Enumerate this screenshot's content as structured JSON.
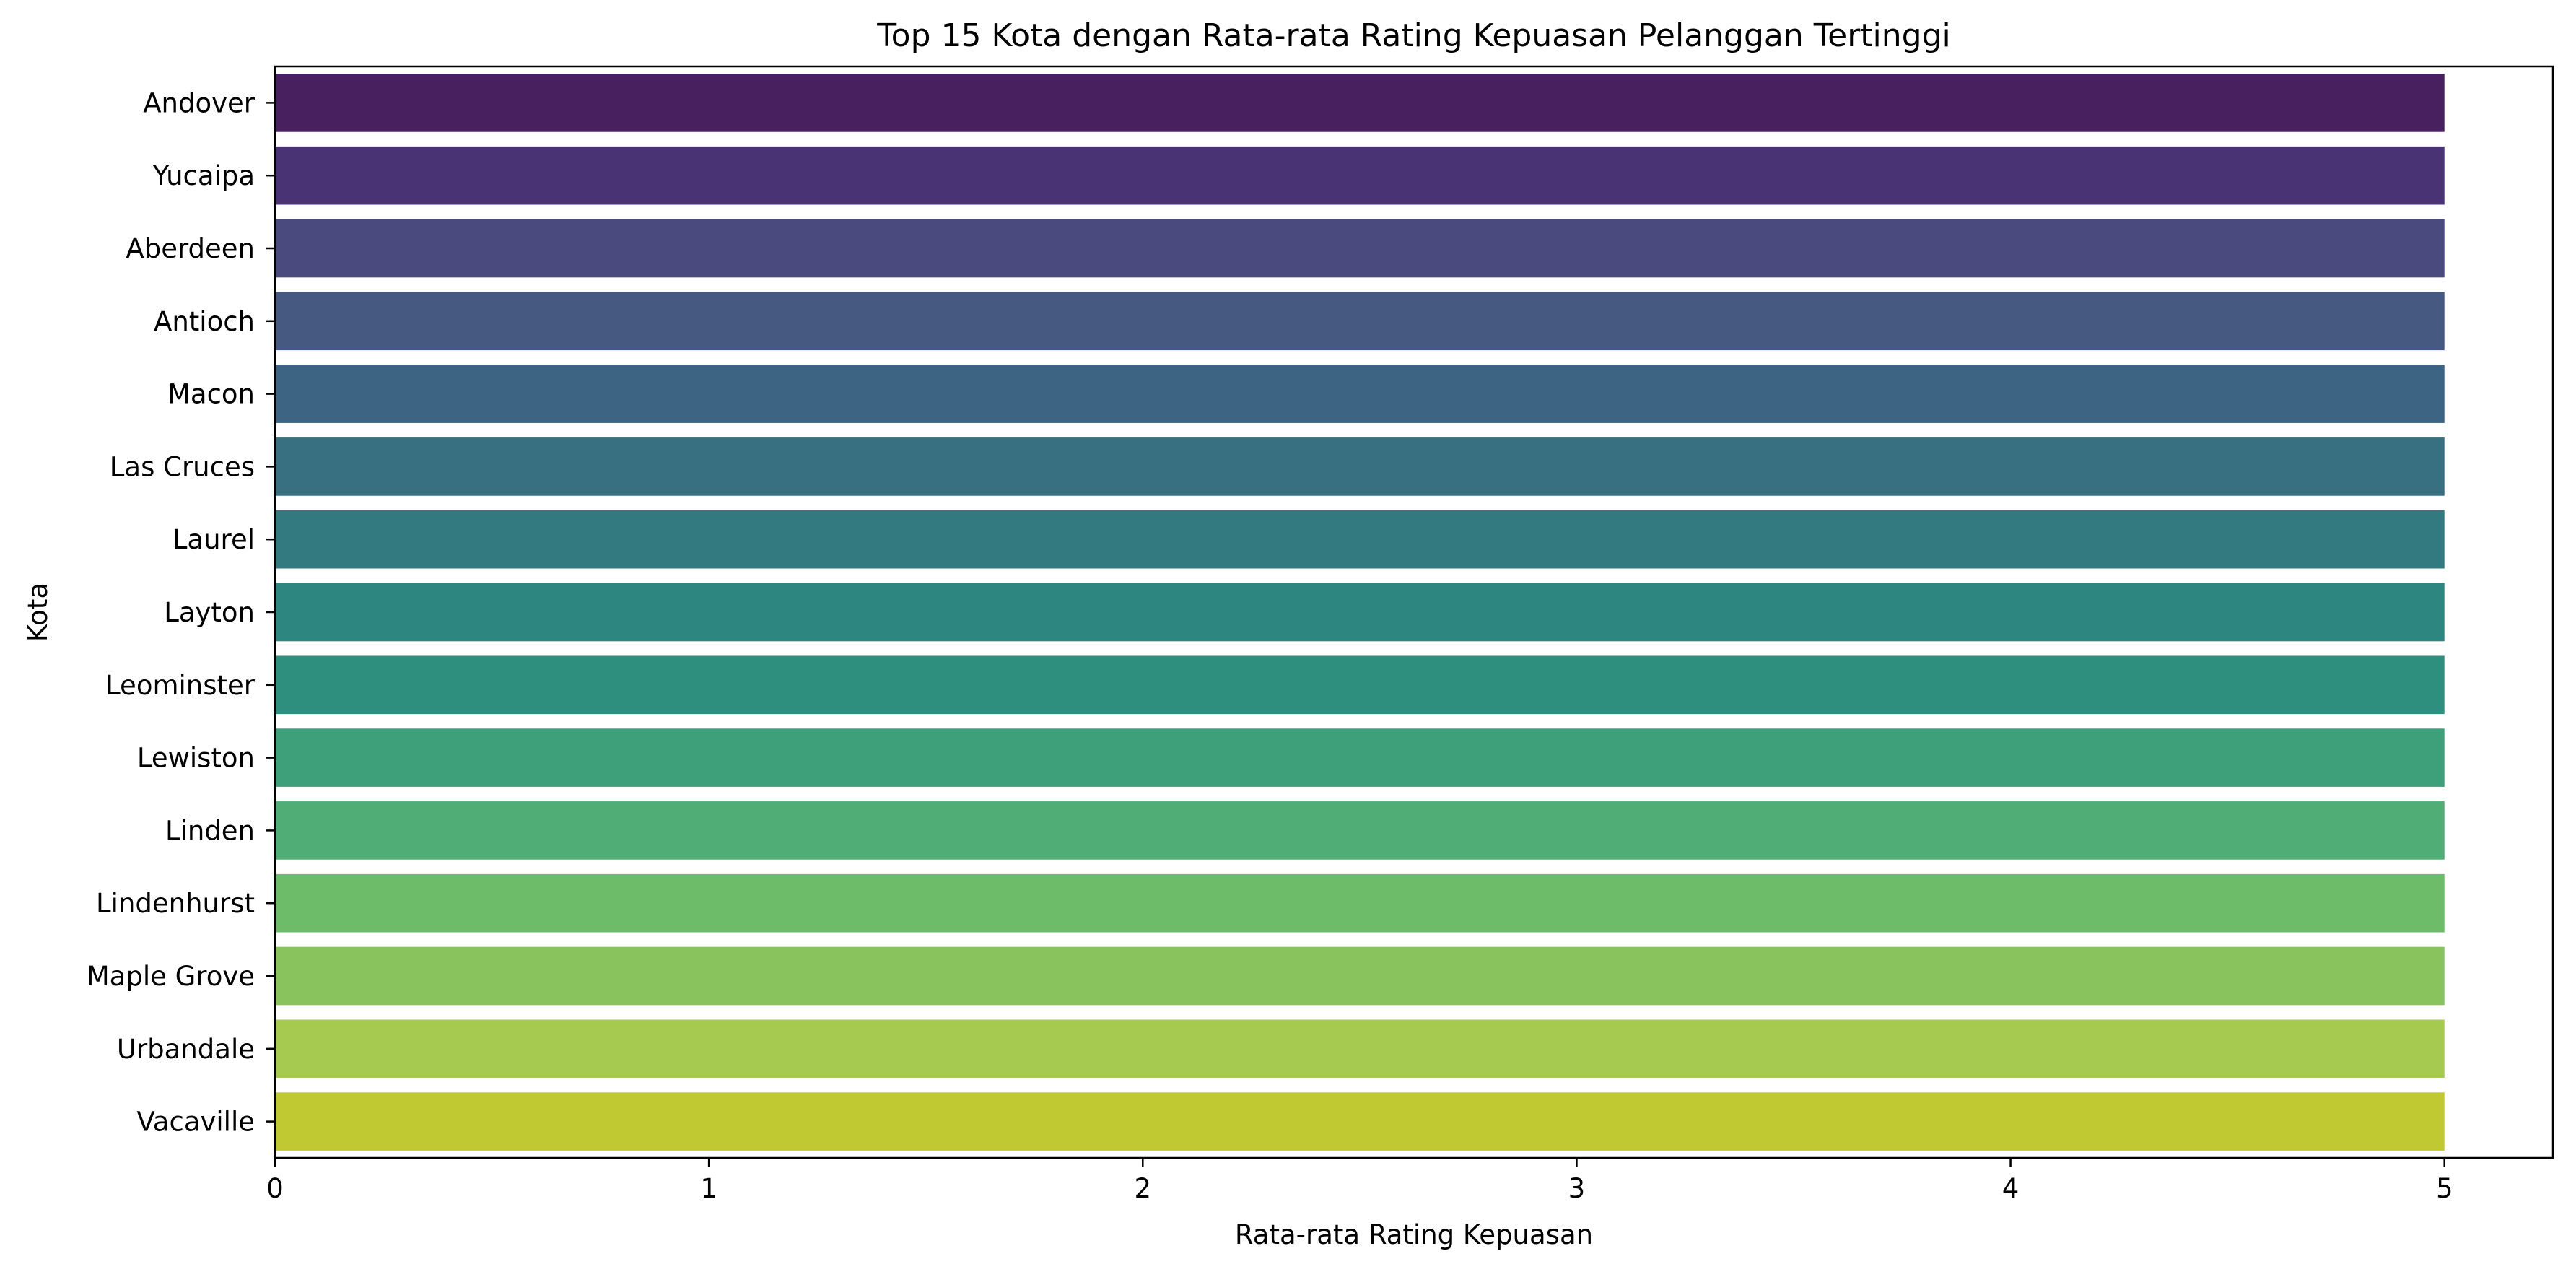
{
  "chart_data": {
    "type": "bar",
    "orientation": "horizontal",
    "title": "Top 15 Kota dengan Rata-rata Rating Kepuasan Pelanggan Tertinggi",
    "xlabel": "Rata-rata Rating Kepuasan",
    "ylabel": "Kota",
    "xlim": [
      0,
      5.25
    ],
    "xticks": [
      0,
      1,
      2,
      3,
      4,
      5
    ],
    "grid": false,
    "categories": [
      "Andover",
      "Yucaipa",
      "Aberdeen",
      "Antioch",
      "Macon",
      "Las Cruces",
      "Laurel",
      "Layton",
      "Leominster",
      "Lewiston",
      "Linden",
      "Lindenhurst",
      "Maple Grove",
      "Urbandale",
      "Vacaville"
    ],
    "values": [
      5,
      5,
      5,
      5,
      5,
      5,
      5,
      5,
      5,
      5,
      5,
      5,
      5,
      5,
      5
    ],
    "colors": [
      "#48205f",
      "#4a3375",
      "#4a4a7f",
      "#465981",
      "#3d6482",
      "#387081",
      "#327a80",
      "#2e8680",
      "#2f8f7e",
      "#3da07b",
      "#4fad75",
      "#6cbc6a",
      "#89c35d",
      "#a6c950",
      "#c1c932"
    ]
  }
}
